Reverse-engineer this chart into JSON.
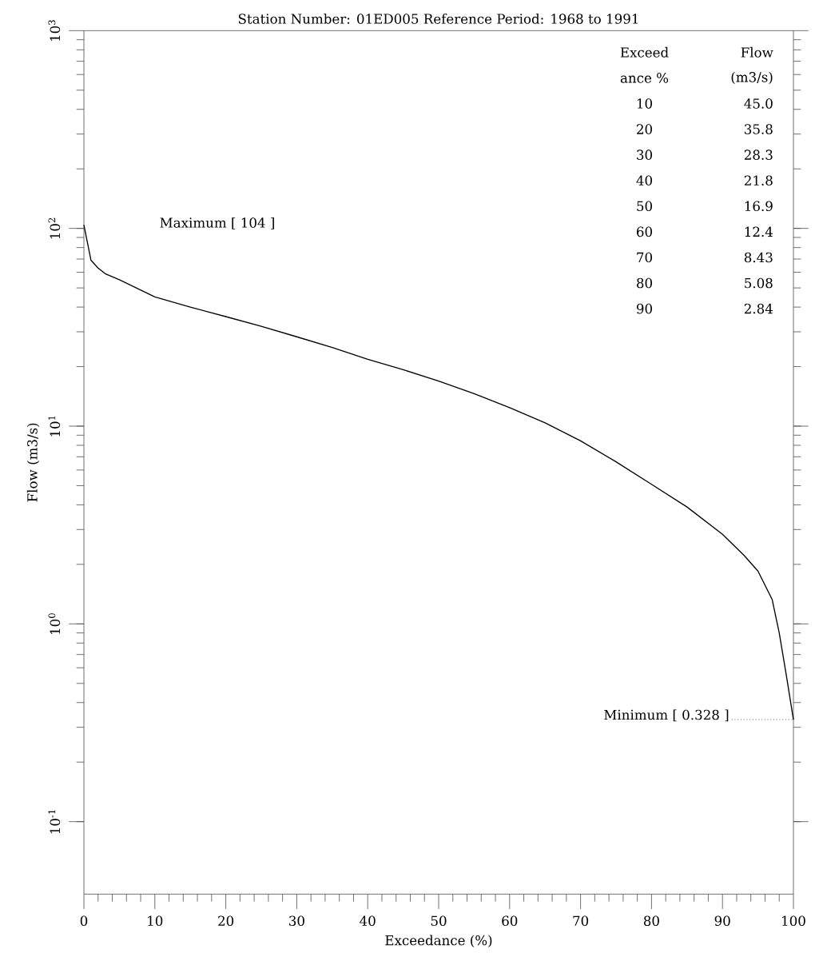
{
  "chart_data": {
    "type": "line",
    "title": "Station Number:  01ED005   Reference Period:  1968  to  1991",
    "xlabel": "Exceedance  (%)",
    "ylabel": "Flow  (m3/s)",
    "x": [
      0,
      1,
      2,
      3,
      5,
      10,
      15,
      20,
      25,
      30,
      35,
      40,
      45,
      50,
      55,
      60,
      65,
      70,
      75,
      80,
      85,
      90,
      93,
      95,
      97,
      98,
      99,
      100
    ],
    "series": [
      {
        "color": "#000000",
        "values": [
          104,
          69,
          63,
          59,
          55,
          45.0,
          40,
          35.8,
          32,
          28.3,
          25,
          21.8,
          19.3,
          16.9,
          14.6,
          12.4,
          10.4,
          8.43,
          6.6,
          5.08,
          3.9,
          2.84,
          2.23,
          1.85,
          1.33,
          0.9,
          0.55,
          0.328
        ]
      }
    ],
    "xlim": [
      0,
      100
    ],
    "xticks": [
      0,
      10,
      20,
      30,
      40,
      50,
      60,
      70,
      80,
      90,
      100
    ],
    "ylim": [
      0.043,
      1000
    ],
    "log": true,
    "yticks": [
      {
        "value": 0.1,
        "label": "10$^{-1}$"
      },
      {
        "value": 1,
        "label": "10$^{0}$"
      },
      {
        "value": 10,
        "label": "10$^{1}$"
      },
      {
        "value": 100,
        "label": "10$^{2}$"
      },
      {
        "value": 1000,
        "label": "10$^{3}$"
      }
    ],
    "grid": false,
    "marker": "none",
    "line_style": "solid",
    "annotations": [
      "Exceed",
      "ance  %",
      "Flow",
      "(m3/s)",
      "10",
      "45.0",
      "20",
      "35.8",
      "30",
      "28.3",
      "40",
      "21.8",
      "50",
      "16.9",
      "60",
      "12.4",
      "70",
      "8.43",
      "80",
      "5.08",
      "90",
      "2.84",
      "Maximum  [ 104 ]",
      {
        "text": "Minimum  [  0.328  ]",
        "x": 100,
        "y": 0.328
      }
    ]
  }
}
